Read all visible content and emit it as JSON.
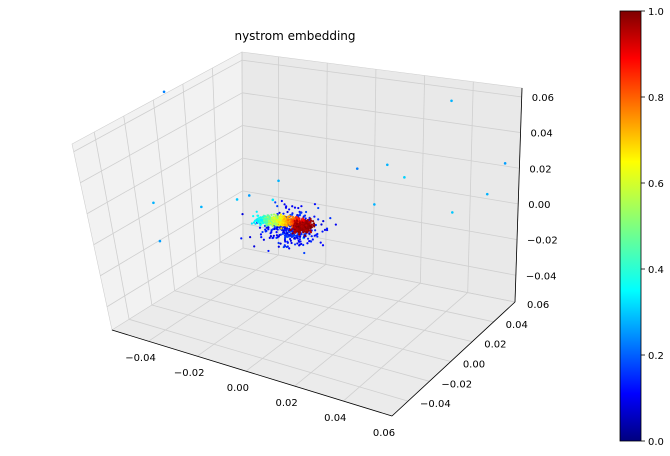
{
  "chart_data": {
    "type": "scatter",
    "projection": "3d",
    "title": "nystrom embedding",
    "xlim": [
      -0.055,
      0.06
    ],
    "ylim": [
      -0.055,
      0.06
    ],
    "zlim": [
      -0.055,
      0.065
    ],
    "x_ticks": [
      "−0.04",
      "−0.02",
      "0.00",
      "0.02",
      "0.04",
      "0.06"
    ],
    "y_ticks": [
      "−0.04",
      "−0.02",
      "0.00",
      "0.02",
      "0.04",
      "0.06"
    ],
    "z_ticks": [
      "−0.04",
      "−0.02",
      "0.00",
      "0.02",
      "0.04",
      "0.06"
    ],
    "grid": true,
    "colormap": "jet",
    "colorbar": {
      "range": [
        0.0,
        1.0
      ],
      "ticks": [
        "0.0",
        "0.2",
        "0.4",
        "0.6",
        "0.8",
        "1.0"
      ]
    },
    "cluster": {
      "description_values": "dense cluster near origin, color increasing along one direction",
      "center": [
        0.0,
        0.0,
        0.0
      ]
    },
    "outliers": [
      {
        "x": -0.05,
        "y": -0.02,
        "z": 0.03,
        "c": 0.25
      },
      {
        "x": -0.045,
        "y": -0.04,
        "z": -0.03,
        "c": 0.3
      },
      {
        "x": -0.04,
        "y": -0.045,
        "z": -0.05,
        "c": 0.28
      },
      {
        "x": -0.03,
        "y": -0.03,
        "z": -0.03,
        "c": 0.3
      },
      {
        "x": -0.02,
        "y": -0.02,
        "z": -0.025,
        "c": 0.32
      },
      {
        "x": -0.015,
        "y": -0.02,
        "z": -0.02,
        "c": 0.28
      },
      {
        "x": -0.01,
        "y": -0.01,
        "z": -0.025,
        "c": 0.35
      },
      {
        "x": -0.01,
        "y": -0.005,
        "z": -0.015,
        "c": 0.3
      },
      {
        "x": 0.005,
        "y": -0.015,
        "z": -0.04,
        "c": 0.3
      },
      {
        "x": 0.02,
        "y": 0.0,
        "z": 0.005,
        "c": 0.25
      },
      {
        "x": 0.03,
        "y": 0.005,
        "z": 0.01,
        "c": 0.3
      },
      {
        "x": 0.03,
        "y": 0.02,
        "z": -0.005,
        "c": 0.33
      },
      {
        "x": 0.04,
        "y": 0.04,
        "z": 0.04,
        "c": 0.3
      },
      {
        "x": 0.05,
        "y": 0.05,
        "z": -0.02,
        "c": 0.3
      },
      {
        "x": 0.055,
        "y": 0.055,
        "z": 0.0,
        "c": 0.28
      },
      {
        "x": 0.045,
        "y": 0.03,
        "z": -0.025,
        "c": 0.32
      },
      {
        "x": 0.02,
        "y": 0.015,
        "z": -0.025,
        "c": 0.3
      }
    ]
  }
}
